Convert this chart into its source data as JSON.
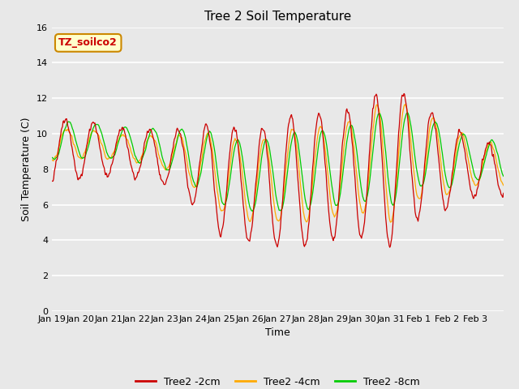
{
  "title": "Tree 2 Soil Temperature",
  "ylabel": "Soil Temperature (C)",
  "xlabel": "Time",
  "annotation": "TZ_soilco2",
  "ylim": [
    0,
    16
  ],
  "yticks": [
    0,
    2,
    4,
    6,
    8,
    10,
    12,
    14,
    16
  ],
  "fig_bg": "#e8e8e8",
  "plot_bg": "#e8e8e8",
  "grid_color": "#ffffff",
  "title_fontsize": 11,
  "axis_label_fontsize": 9,
  "tick_fontsize": 8,
  "line_colors": {
    "2cm": "#cc0000",
    "4cm": "#ffaa00",
    "8cm": "#00cc00"
  },
  "line_width": 0.9,
  "legend_labels": [
    "Tree2 -2cm",
    "Tree2 -4cm",
    "Tree2 -8cm"
  ],
  "x_tick_labels": [
    "Jan 19",
    "Jan 20",
    "Jan 21",
    "Jan 22",
    "Jan 23",
    "Jan 24",
    "Jan 25",
    "Jan 26",
    "Jan 27",
    "Jan 28",
    "Jan 29",
    "Jan 30",
    "Jan 31",
    "Feb 1",
    "Feb 2",
    "Feb 3"
  ],
  "annotation_bg": "#ffffcc",
  "annotation_border": "#cc8800",
  "annotation_color": "#cc0000",
  "annotation_fontsize": 9
}
